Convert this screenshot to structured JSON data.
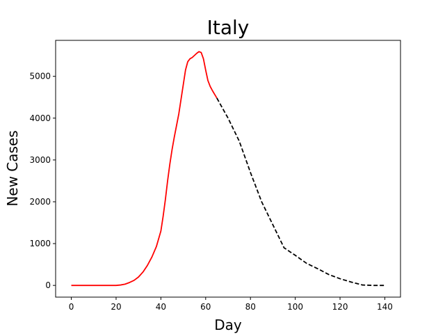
{
  "chart_data": {
    "type": "line",
    "title": "Italy",
    "xlabel": "Day",
    "ylabel": "New Cases",
    "xlim": [
      -7,
      147
    ],
    "ylim": [
      -280,
      5860
    ],
    "xticks": [
      0,
      20,
      40,
      60,
      80,
      100,
      120,
      140
    ],
    "yticks": [
      0,
      1000,
      2000,
      3000,
      4000,
      5000
    ],
    "grid": false,
    "legend": "none",
    "series": [
      {
        "style": "solid",
        "color": "#ff0000",
        "x": [
          0,
          10,
          20,
          22,
          24,
          26,
          28,
          30,
          32,
          34,
          36,
          38,
          40,
          41,
          42,
          43,
          44,
          45,
          46,
          48,
          50,
          51,
          52,
          53,
          54,
          55,
          56,
          57,
          58,
          59,
          60,
          61,
          62,
          63,
          64,
          65
        ],
        "y": [
          0,
          0,
          0,
          10,
          30,
          70,
          120,
          200,
          320,
          480,
          680,
          930,
          1300,
          1650,
          2050,
          2500,
          2900,
          3250,
          3550,
          4100,
          4800,
          5150,
          5350,
          5420,
          5450,
          5500,
          5550,
          5590,
          5570,
          5420,
          5150,
          4900,
          4760,
          4660,
          4570,
          4480
        ]
      },
      {
        "style": "dashed",
        "color": "#000000",
        "x": [
          65,
          70,
          75,
          80,
          85,
          90,
          95,
          100,
          105,
          110,
          115,
          120,
          125,
          130,
          135,
          140
        ],
        "y": [
          4480,
          4000,
          3450,
          2700,
          2000,
          1450,
          900,
          720,
          530,
          400,
          260,
          160,
          80,
          10,
          0,
          0
        ]
      }
    ]
  }
}
